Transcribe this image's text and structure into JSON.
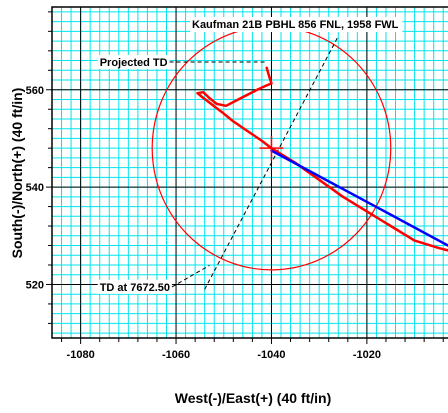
{
  "chart_data": {
    "type": "line",
    "title": "Kaufman 21B PBHL 856 FNL, 1958 FWL",
    "xlabel": "West(-)/East(+) (40 ft/in)",
    "ylabel": "South(-)/North(+) (40 ft/in)",
    "xlim": [
      -1086,
      -1003
    ],
    "ylim": [
      509,
      577
    ],
    "x_ticks": [
      -1080,
      -1060,
      -1040,
      -1020
    ],
    "y_ticks": [
      520,
      540,
      560
    ],
    "grid": true,
    "grid_color": "#00e5ee",
    "frame_color": "#000000",
    "series": [
      {
        "color": "#ff0000",
        "points": [
          [
            -1040,
            548
          ],
          [
            -1042,
            549.5
          ],
          [
            -1045,
            551.5
          ],
          [
            -1048,
            553.5
          ],
          [
            -1050.5,
            555.5
          ],
          [
            -1052.5,
            557
          ],
          [
            -1054.5,
            558.5
          ],
          [
            -1055.5,
            559.3
          ],
          [
            -1054.3,
            559.5
          ],
          [
            -1053,
            558.3
          ],
          [
            -1051.5,
            557.1
          ],
          [
            -1049.5,
            556.7
          ],
          [
            -1046,
            558.5
          ],
          [
            -1043,
            560
          ],
          [
            -1041,
            560.9
          ],
          [
            -1040,
            561.3
          ],
          [
            -1040.5,
            562.8
          ],
          [
            -1041,
            564.5
          ]
        ]
      },
      {
        "color": "#ff0000",
        "points": [
          [
            -1040,
            548
          ],
          [
            -1035,
            545
          ],
          [
            -1030,
            541.5
          ],
          [
            -1025,
            538
          ],
          [
            -1020,
            535
          ],
          [
            -1015,
            532
          ],
          [
            -1010,
            529
          ],
          [
            -1005,
            527.5
          ],
          [
            -1003,
            527
          ]
        ]
      },
      {
        "color": "#0000ff",
        "points": [
          [
            -1040,
            547.5
          ],
          [
            -1003,
            528
          ]
        ]
      }
    ],
    "target_circle": {
      "center": [
        -1040,
        548
      ],
      "radius": 25,
      "color": "#ff0000"
    },
    "cross_marker": {
      "center": [
        -1040,
        548
      ],
      "size": 2.5,
      "color": "#ff0000"
    },
    "trend_line": {
      "from": [
        -1054,
        519
      ],
      "to": [
        -1026,
        571
      ],
      "color": "#000000"
    },
    "annotations": [
      {
        "text": "Projected TD",
        "anchor": [
          -1041,
          565.7
        ],
        "label_at": [
          -1076,
          565.7
        ]
      },
      {
        "text": "TD at 7672.50",
        "anchor": [
          -1053,
          523.9
        ],
        "label_at": [
          -1076,
          519.5
        ]
      }
    ]
  }
}
